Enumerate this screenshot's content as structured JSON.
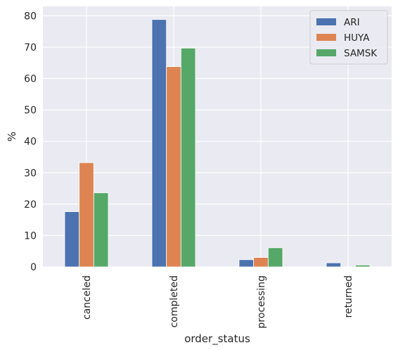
{
  "chart_data": {
    "type": "bar",
    "xlabel": "order_status",
    "ylabel": "%",
    "ylim": [
      0,
      83
    ],
    "yticks": [
      0,
      10,
      20,
      30,
      40,
      50,
      60,
      70,
      80
    ],
    "grid": true,
    "legend_position": "top-right",
    "categories": [
      "canceled",
      "completed",
      "processing",
      "returned"
    ],
    "series": [
      {
        "name": "ARI",
        "color": "#4c72b0",
        "values": [
          17.6,
          78.8,
          2.3,
          1.3
        ]
      },
      {
        "name": "HUYA",
        "color": "#dd8452",
        "values": [
          33.2,
          63.8,
          3.0,
          0.0
        ]
      },
      {
        "name": "SAMSK",
        "color": "#55a868",
        "values": [
          23.6,
          69.7,
          6.1,
          0.6
        ]
      }
    ]
  }
}
